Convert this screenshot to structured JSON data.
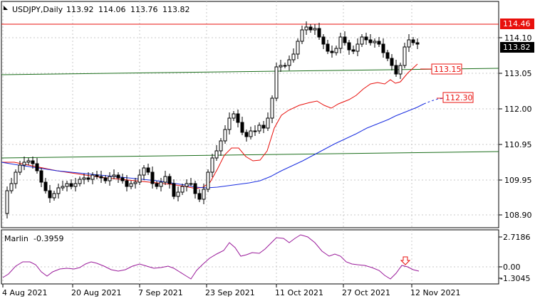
{
  "chart_data": {
    "type": "candlestick",
    "title": "USDJPY,Daily",
    "ohlc_header": [
      "113.92",
      "114.06",
      "113.76",
      "113.82"
    ],
    "price_ticks": [
      "114.10",
      "113.05",
      "112.00",
      "110.95",
      "109.95",
      "108.90"
    ],
    "x_ticks": [
      "4 Aug 2021",
      "20 Aug 2021",
      "7 Sep 2021",
      "23 Sep 2021",
      "11 Oct 2021",
      "27 Oct 2021",
      "12 Nov 2021"
    ],
    "levels": [
      {
        "value": 114.46,
        "label": "114.46",
        "color": "#e8100c"
      },
      {
        "value": 113.15,
        "label": "113.15",
        "color": "#1b6e1b"
      },
      {
        "value": 110.8,
        "label": "",
        "color": "#1b6e1b"
      }
    ],
    "current_price": {
      "value": 113.82,
      "label": "113.82"
    },
    "ma_red_label": {
      "value": 113.15,
      "label": "113.15"
    },
    "ma_blue_label": {
      "value": 112.3,
      "label": "112.30"
    },
    "indicator": {
      "name": "Marlin",
      "value": "-0.3959",
      "ticks": [
        "2.7186",
        "0.00",
        "-1.3045"
      ],
      "arrow_color": "#e8100c"
    },
    "series_colors": {
      "red_ma": "#e8100c",
      "blue_ma": "#1a2ee0",
      "oscillator": "#9a1a9a",
      "green_level": "#1b6e1b"
    }
  }
}
